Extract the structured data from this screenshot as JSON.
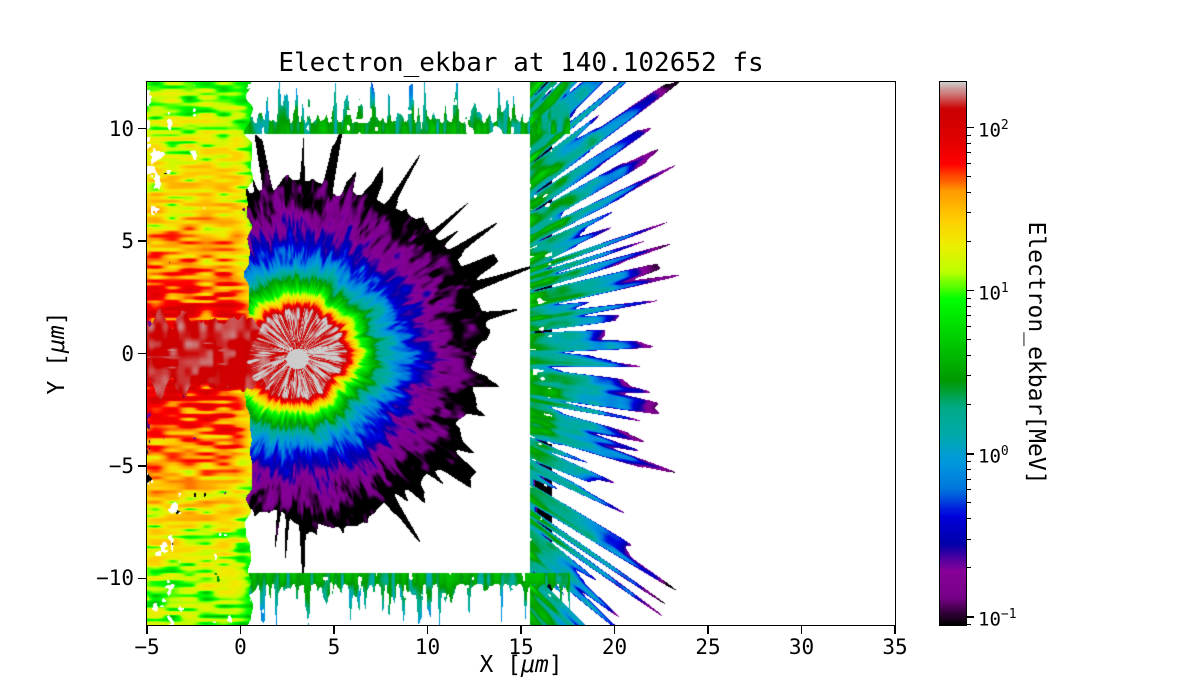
{
  "figure": {
    "background": "#ffffff"
  },
  "axes": {
    "xlabel": {
      "prefix": "X [",
      "unit": "μm",
      "suffix": "]",
      "full": "X [μm]"
    },
    "ylabel": {
      "prefix": "Y [",
      "unit": "μm",
      "suffix": "]",
      "full": "Y [μm]"
    }
  },
  "chart_data": {
    "type": "heatmap",
    "title": "Electron_ekbar at 140.102652 fs",
    "time_fs": 140.102652,
    "xlabel": "X [μm]",
    "ylabel": "Y [μm]",
    "xlim": [
      -5,
      35
    ],
    "ylim": [
      -12.07,
      12.07
    ],
    "x_ticks": [
      -5,
      0,
      5,
      10,
      15,
      20,
      25,
      30,
      35
    ],
    "x_tick_labels": [
      "−5",
      "0",
      "5",
      "10",
      "15",
      "20",
      "25",
      "30",
      "35"
    ],
    "y_ticks": [
      -10,
      -5,
      0,
      5,
      10
    ],
    "y_tick_labels": [
      "−10",
      "−5",
      "0",
      "5",
      "10"
    ],
    "grid": false,
    "legend": false,
    "colorbar": {
      "label": "Electron_ekbar[MeV]",
      "scale": "log",
      "vmin_log10": -1.05,
      "vmax_log10": 2.28,
      "major_tick_exponents": [
        2,
        1,
        0,
        -1
      ],
      "colormap": "nipy_spectral",
      "stops": [
        [
          0.0,
          0.0,
          0.0,
          0.0
        ],
        [
          0.05,
          0.4667,
          0.0,
          0.5333
        ],
        [
          0.1,
          0.5333,
          0.0,
          0.6
        ],
        [
          0.15,
          0.0,
          0.0,
          0.6667
        ],
        [
          0.2,
          0.0,
          0.0,
          0.8667
        ],
        [
          0.25,
          0.0,
          0.4667,
          0.8667
        ],
        [
          0.3,
          0.0,
          0.6,
          0.8667
        ],
        [
          0.35,
          0.0,
          0.6667,
          0.6667
        ],
        [
          0.4,
          0.0,
          0.6667,
          0.5333
        ],
        [
          0.45,
          0.0,
          0.6,
          0.0
        ],
        [
          0.5,
          0.0,
          0.7333,
          0.0
        ],
        [
          0.55,
          0.0,
          0.8667,
          0.0
        ],
        [
          0.6,
          0.0,
          1.0,
          0.0
        ],
        [
          0.65,
          0.7333,
          1.0,
          0.0
        ],
        [
          0.7,
          0.9333,
          0.9333,
          0.0
        ],
        [
          0.75,
          1.0,
          0.8,
          0.0
        ],
        [
          0.8,
          1.0,
          0.6,
          0.0
        ],
        [
          0.85,
          1.0,
          0.0,
          0.0
        ],
        [
          0.9,
          0.8667,
          0.0,
          0.0
        ],
        [
          0.95,
          0.8,
          0.0,
          0.0
        ],
        [
          1.0,
          0.8,
          0.8,
          0.8
        ]
      ]
    },
    "field": {
      "description": "2D electron mean-kinetic-energy map of a laser-plasma burst: hot red core with gray saturation spot, concentric green/blue/purple rings with radial spikes, dense yellow-orange backward jets on the left edge, white masked simulation window, and teal/blue particle streak bands at the window boundaries",
      "burst_center_um": [
        3.0,
        0.0
      ],
      "core_radius_um": 1.9,
      "core_energy_mev": 160,
      "peak_energy_mev": 300,
      "burst_outer_radius_um": 9,
      "left_jet_region_x_um": [
        -5,
        0.5
      ],
      "left_jet_energy_mev": [
        3,
        170
      ],
      "window_x_um": [
        0,
        15.5
      ],
      "window_y_um": [
        -10,
        10
      ],
      "edge_band_x_um": [
        -1.5,
        17.6
      ],
      "edge_band_energy_mev": [
        0.4,
        4.5
      ],
      "right_band_x_um": [
        15.5,
        23.5
      ],
      "right_band_energy_mev": [
        0.12,
        4
      ]
    }
  }
}
